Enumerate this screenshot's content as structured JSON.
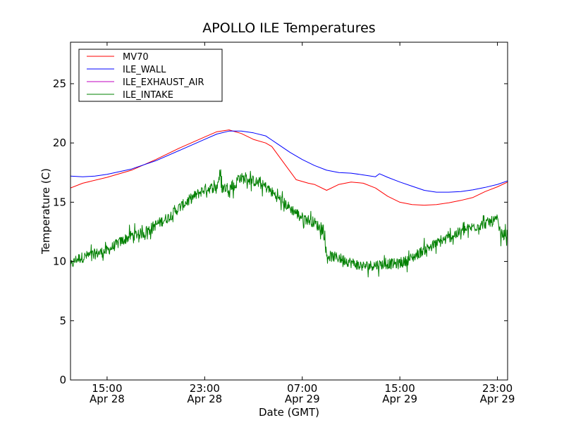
{
  "chart_data": {
    "type": "line",
    "title": "APOLLO ILE Temperatures",
    "xlabel": "Date (GMT)",
    "ylabel": "Temperature (C)",
    "xlim": [
      "2014-04-28T12:00",
      "2014-04-29T23:50"
    ],
    "ylim": [
      0,
      28.5
    ],
    "yticks": [
      0,
      5,
      10,
      15,
      20,
      25
    ],
    "xticks": [
      {
        "x": "2014-04-28T15:00",
        "time": "15:00",
        "date": "Apr 28"
      },
      {
        "x": "2014-04-28T23:00",
        "time": "23:00",
        "date": "Apr 28"
      },
      {
        "x": "2014-04-29T07:00",
        "time": "07:00",
        "date": "Apr 29"
      },
      {
        "x": "2014-04-29T15:00",
        "time": "15:00",
        "date": "Apr 29"
      },
      {
        "x": "2014-04-29T23:00",
        "time": "23:00",
        "date": "Apr 29"
      }
    ],
    "grid": false,
    "legend_position": "top-left",
    "series": [
      {
        "name": "MV70",
        "color": "#ff0000",
        "points": [
          [
            "2014-04-28T12:00",
            16.2
          ],
          [
            "2014-04-28T13:00",
            16.6
          ],
          [
            "2014-04-28T15:00",
            17.1
          ],
          [
            "2014-04-28T17:00",
            17.7
          ],
          [
            "2014-04-28T19:00",
            18.6
          ],
          [
            "2014-04-28T21:00",
            19.6
          ],
          [
            "2014-04-28T23:00",
            20.5
          ],
          [
            "2014-04-29T00:00",
            20.95
          ],
          [
            "2014-04-29T01:00",
            21.1
          ],
          [
            "2014-04-29T02:00",
            20.8
          ],
          [
            "2014-04-29T03:00",
            20.3
          ],
          [
            "2014-04-29T04:00",
            20.0
          ],
          [
            "2014-04-29T04:30",
            19.7
          ],
          [
            "2014-04-29T05:30",
            18.3
          ],
          [
            "2014-04-29T06:30",
            16.9
          ],
          [
            "2014-04-29T07:30",
            16.6
          ],
          [
            "2014-04-29T08:00",
            16.5
          ],
          [
            "2014-04-29T09:00",
            16.0
          ],
          [
            "2014-04-29T10:00",
            16.5
          ],
          [
            "2014-04-29T11:00",
            16.7
          ],
          [
            "2014-04-29T12:00",
            16.6
          ],
          [
            "2014-04-29T13:00",
            16.2
          ],
          [
            "2014-04-29T14:00",
            15.5
          ],
          [
            "2014-04-29T15:00",
            15.0
          ],
          [
            "2014-04-29T16:00",
            14.8
          ],
          [
            "2014-04-29T17:00",
            14.75
          ],
          [
            "2014-04-29T18:00",
            14.8
          ],
          [
            "2014-04-29T19:00",
            14.95
          ],
          [
            "2014-04-29T20:00",
            15.15
          ],
          [
            "2014-04-29T21:00",
            15.4
          ],
          [
            "2014-04-29T22:00",
            15.9
          ],
          [
            "2014-04-29T23:00",
            16.3
          ],
          [
            "2014-04-29T23:50",
            16.7
          ]
        ]
      },
      {
        "name": "ILE_WALL",
        "color": "#0000ff",
        "points": [
          [
            "2014-04-28T12:00",
            17.2
          ],
          [
            "2014-04-28T13:00",
            17.15
          ],
          [
            "2014-04-28T14:00",
            17.2
          ],
          [
            "2014-04-28T15:00",
            17.35
          ],
          [
            "2014-04-28T17:00",
            17.8
          ],
          [
            "2014-04-28T19:00",
            18.5
          ],
          [
            "2014-04-28T21:00",
            19.4
          ],
          [
            "2014-04-28T23:00",
            20.3
          ],
          [
            "2014-04-29T00:00",
            20.75
          ],
          [
            "2014-04-29T01:00",
            21.0
          ],
          [
            "2014-04-29T02:00",
            21.0
          ],
          [
            "2014-04-29T03:00",
            20.85
          ],
          [
            "2014-04-29T04:00",
            20.6
          ],
          [
            "2014-04-29T05:00",
            19.9
          ],
          [
            "2014-04-29T06:00",
            19.2
          ],
          [
            "2014-04-29T07:00",
            18.6
          ],
          [
            "2014-04-29T08:00",
            18.1
          ],
          [
            "2014-04-29T09:00",
            17.7
          ],
          [
            "2014-04-29T10:00",
            17.5
          ],
          [
            "2014-04-29T11:00",
            17.45
          ],
          [
            "2014-04-29T12:00",
            17.3
          ],
          [
            "2014-04-29T13:00",
            17.15
          ],
          [
            "2014-04-29T13:20",
            17.4
          ],
          [
            "2014-04-29T14:00",
            17.1
          ],
          [
            "2014-04-29T15:00",
            16.7
          ],
          [
            "2014-04-29T16:00",
            16.35
          ],
          [
            "2014-04-29T17:00",
            16.0
          ],
          [
            "2014-04-29T18:00",
            15.85
          ],
          [
            "2014-04-29T19:00",
            15.85
          ],
          [
            "2014-04-29T20:00",
            15.9
          ],
          [
            "2014-04-29T21:00",
            16.05
          ],
          [
            "2014-04-29T22:00",
            16.25
          ],
          [
            "2014-04-29T23:00",
            16.5
          ],
          [
            "2014-04-29T23:50",
            16.8
          ]
        ]
      },
      {
        "name": "ILE_EXHAUST_AIR",
        "color": "#bf00bf",
        "points": []
      },
      {
        "name": "ILE_INTAKE",
        "color": "#008000",
        "noise": 0.45,
        "points": [
          [
            "2014-04-28T12:00",
            9.6
          ],
          [
            "2014-04-28T12:30",
            10.2
          ],
          [
            "2014-04-28T13:30",
            10.5
          ],
          [
            "2014-04-28T15:00",
            10.9
          ],
          [
            "2014-04-28T16:00",
            11.6
          ],
          [
            "2014-04-28T17:00",
            12.2
          ],
          [
            "2014-04-28T18:00",
            12.4
          ],
          [
            "2014-04-28T19:00",
            13.1
          ],
          [
            "2014-04-28T20:00",
            13.7
          ],
          [
            "2014-04-28T21:00",
            14.6
          ],
          [
            "2014-04-28T22:00",
            15.4
          ],
          [
            "2014-04-28T23:00",
            16.1
          ],
          [
            "2014-04-29T00:00",
            16.3
          ],
          [
            "2014-04-29T00:15",
            17.4
          ],
          [
            "2014-04-29T00:25",
            16.2
          ],
          [
            "2014-04-29T01:30",
            16.3
          ],
          [
            "2014-04-29T01:45",
            17.1
          ],
          [
            "2014-04-29T03:00",
            16.8
          ],
          [
            "2014-04-29T04:00",
            16.3
          ],
          [
            "2014-04-29T05:00",
            15.4
          ],
          [
            "2014-04-29T06:00",
            14.5
          ],
          [
            "2014-04-29T07:00",
            13.7
          ],
          [
            "2014-04-29T08:00",
            13.3
          ],
          [
            "2014-04-29T08:45",
            12.5
          ],
          [
            "2014-04-29T09:00",
            10.5
          ],
          [
            "2014-04-29T10:00",
            10.3
          ],
          [
            "2014-04-29T11:00",
            9.9
          ],
          [
            "2014-04-29T12:00",
            9.6
          ],
          [
            "2014-04-29T13:00",
            9.7
          ],
          [
            "2014-04-29T14:00",
            9.8
          ],
          [
            "2014-04-29T15:00",
            9.8
          ],
          [
            "2014-04-29T16:00",
            10.3
          ],
          [
            "2014-04-29T17:00",
            11.0
          ],
          [
            "2014-04-29T18:00",
            11.5
          ],
          [
            "2014-04-29T19:00",
            12.0
          ],
          [
            "2014-04-29T20:00",
            12.5
          ],
          [
            "2014-04-29T21:00",
            12.9
          ],
          [
            "2014-04-29T22:00",
            13.2
          ],
          [
            "2014-04-29T23:00",
            13.5
          ],
          [
            "2014-04-29T23:15",
            12.3
          ],
          [
            "2014-04-29T23:50",
            12.2
          ]
        ]
      }
    ]
  }
}
